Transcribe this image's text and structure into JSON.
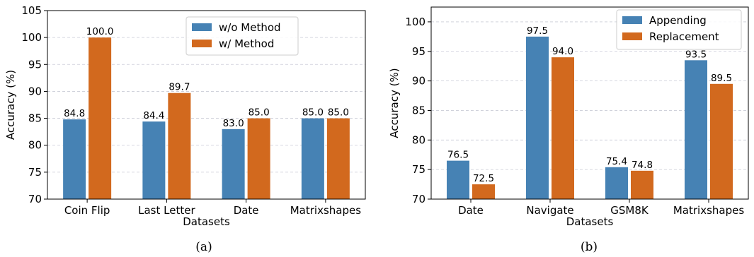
{
  "chart_data": [
    {
      "type": "bar",
      "caption": "(a)",
      "xlabel": "Datasets",
      "ylabel": "Accuracy (%)",
      "ylim": [
        70,
        105
      ],
      "yticks": [
        70,
        75,
        80,
        85,
        90,
        95,
        100,
        105
      ],
      "grid": "horizontal dashed",
      "legend_placement": "top-right",
      "categories": [
        "Coin Flip",
        "Last Letter",
        "Date",
        "Matrixshapes"
      ],
      "series": [
        {
          "name": "w/o Method",
          "color": "#4682b4",
          "values": [
            84.8,
            84.4,
            83.0,
            85.0
          ],
          "labels": [
            "84.8",
            "84.4",
            "83.0",
            "85.0"
          ]
        },
        {
          "name": "w/ Method",
          "color": "#d2691e",
          "values": [
            100.0,
            89.7,
            85.0,
            85.0
          ],
          "labels": [
            "100.0",
            "89.7",
            "85.0",
            "85.0"
          ]
        }
      ]
    },
    {
      "type": "bar",
      "caption": "(b)",
      "xlabel": "Datasets",
      "ylabel": "Accuracy (%)",
      "ylim": [
        70,
        102.5
      ],
      "yticks": [
        70,
        75,
        80,
        85,
        90,
        95,
        100
      ],
      "grid": "horizontal dashed",
      "legend_placement": "top-right",
      "categories": [
        "Date",
        "Navigate",
        "GSM8K",
        "Matrixshapes"
      ],
      "series": [
        {
          "name": "Appending",
          "color": "#4682b4",
          "values": [
            76.5,
            97.5,
            75.4,
            93.5
          ],
          "labels": [
            "76.5",
            "97.5",
            "75.4",
            "93.5"
          ]
        },
        {
          "name": "Replacement",
          "color": "#d2691e",
          "values": [
            72.5,
            94.0,
            74.8,
            89.5
          ],
          "labels": [
            "72.5",
            "94.0",
            "74.8",
            "89.5"
          ]
        }
      ]
    }
  ]
}
